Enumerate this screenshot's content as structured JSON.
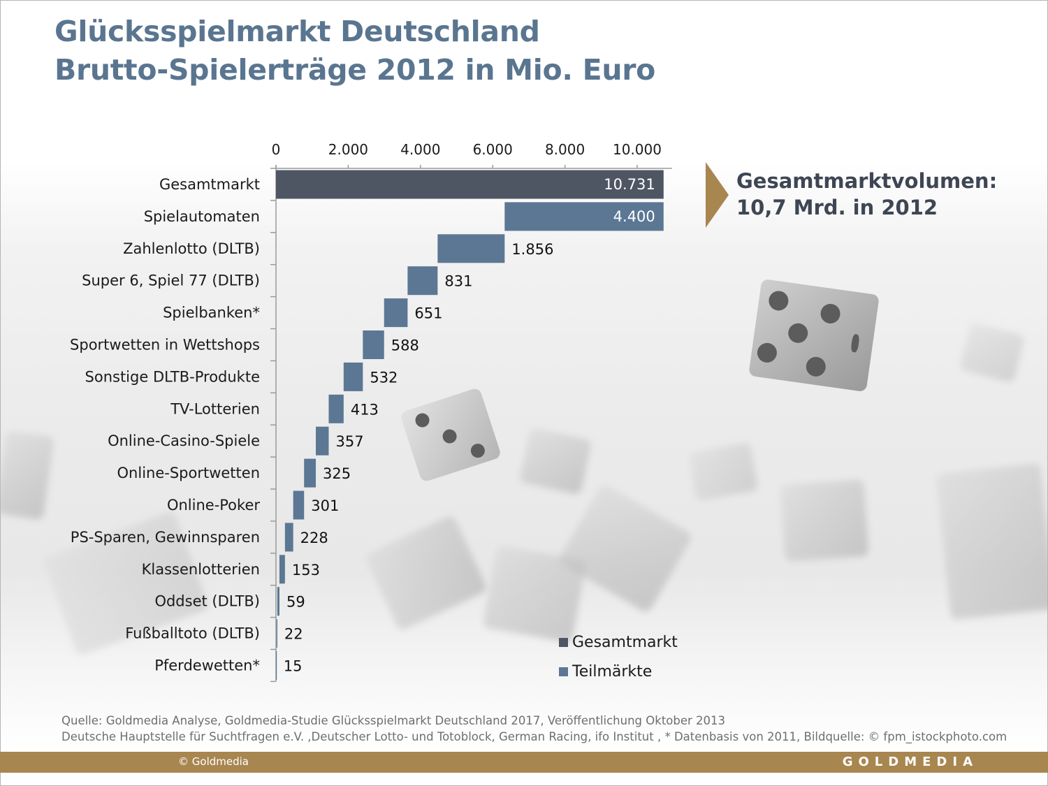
{
  "title": {
    "line1": "Glücksspielmarkt Deutschland",
    "line2": "Brutto-Spielerträge 2012 in Mio. Euro"
  },
  "callout": {
    "line1": "Gesamtmarktvolumen:",
    "line2": "10,7 Mrd. in 2012",
    "accent_color": "#a88650"
  },
  "chart_data": {
    "type": "bar",
    "subtype": "waterfall-horizontal",
    "title": "Glücksspielmarkt Deutschland – Brutto-Spielerträge 2012 in Mio. Euro",
    "xlabel": "",
    "ylabel": "",
    "xlim": [
      0,
      10731
    ],
    "x_ticks": [
      0,
      2000,
      4000,
      6000,
      8000,
      10000
    ],
    "x_tick_labels": [
      "0",
      "2.000",
      "4.000",
      "6.000",
      "8.000",
      "10.000"
    ],
    "axis_position": "top",
    "grid": false,
    "categories": [
      "Gesamtmarkt",
      "Spielautomaten",
      "Zahlenlotto (DLTB)",
      "Super 6, Spiel 77 (DLTB)",
      "Spielbanken*",
      "Sportwetten in Wettshops",
      "Sonstige DLTB-Produkte",
      "TV-Lotterien",
      "Online-Casino-Spiele",
      "Online-Sportwetten",
      "Online-Poker",
      "PS-Sparen, Gewinnsparen",
      "Klassenlotterien",
      "Oddset (DLTB)",
      "Fußballtoto (DLTB)",
      "Pferdewetten*"
    ],
    "values": [
      10731,
      4400,
      1856,
      831,
      651,
      588,
      532,
      413,
      357,
      325,
      301,
      228,
      153,
      59,
      22,
      15
    ],
    "value_labels": [
      "10.731",
      "4.400",
      "1.856",
      "831",
      "651",
      "588",
      "532",
      "413",
      "357",
      "325",
      "301",
      "228",
      "153",
      "59",
      "22",
      "15"
    ],
    "series_type": [
      "Gesamtmarkt",
      "Teilmärkte",
      "Teilmärkte",
      "Teilmärkte",
      "Teilmärkte",
      "Teilmärkte",
      "Teilmärkte",
      "Teilmärkte",
      "Teilmärkte",
      "Teilmärkte",
      "Teilmärkte",
      "Teilmärkte",
      "Teilmärkte",
      "Teilmärkte",
      "Teilmärkte",
      "Teilmärkte"
    ],
    "legend": [
      {
        "name": "Gesamtmarkt",
        "color": "#4f5663"
      },
      {
        "name": "Teilmärkte",
        "color": "#5b7794"
      }
    ],
    "legend_position": "bottom-right"
  },
  "source": {
    "line1": "Quelle: Goldmedia Analyse, Goldmedia-Studie Glücksspielmarkt Deutschland 2017, Veröffentlichung Oktober 2013",
    "line2": "Deutsche Hauptstelle für Suchtfragen e.V. ,Deutscher Lotto- und Totoblock, German Racing, ifo Institut , * Datenbasis von 2011, Bildquelle: © fpm_istockphoto.com"
  },
  "footer": {
    "copyright": "© Goldmedia",
    "brand": "GOLDMEDIA",
    "color": "#a88650"
  }
}
